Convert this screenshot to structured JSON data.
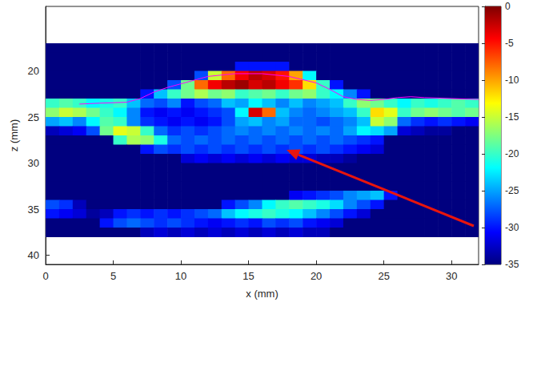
{
  "chart_data": {
    "type": "heatmap",
    "xlabel": "x (mm)",
    "ylabel": "z (mm)",
    "xlim": [
      0,
      32
    ],
    "ylim": [
      13,
      41
    ],
    "xticks": [
      0,
      5,
      10,
      15,
      20,
      25,
      30
    ],
    "yticks": [
      20,
      25,
      30,
      35,
      40
    ],
    "grid": false,
    "cells": {
      "x": [
        0.5,
        1.5,
        2.5,
        3.5,
        4.5,
        5.5,
        6.5,
        7.5,
        8.5,
        9.5,
        10.5,
        11.5,
        12.5,
        13.5,
        14.5,
        15.5,
        16.5,
        17.5,
        18.5,
        19.5,
        20.5,
        21.5,
        22.5,
        23.5,
        24.5,
        25.5,
        26.5,
        27.5,
        28.5,
        29.5,
        30.5,
        31.5
      ],
      "z": [
        17.5,
        18.5,
        19.5,
        20.5,
        21.5,
        22.5,
        23.5,
        24.5,
        25.5,
        26.5,
        27.5,
        28.5,
        29.5,
        30.5,
        31.5,
        32.5,
        33.5,
        34.5,
        35.5,
        36.5,
        37.5
      ],
      "values": [
        [
          -35,
          -35,
          -35,
          -35,
          -35,
          -35,
          -35,
          -35,
          -35,
          -35,
          -35,
          -35,
          -35,
          -35,
          -35,
          -35,
          -35,
          -35,
          -35,
          -35,
          -35,
          -35,
          -35,
          -35,
          -35,
          -35,
          -35,
          -35,
          -35,
          -35,
          -35,
          -35
        ],
        [
          -35,
          -35,
          -35,
          -35,
          -35,
          -35,
          -35,
          -35,
          -35,
          -35,
          -35,
          -35,
          -35,
          -35,
          -35,
          -35,
          -35,
          -35,
          -35,
          -35,
          -35,
          -35,
          -35,
          -35,
          -35,
          -35,
          -35,
          -35,
          -35,
          -35,
          -35,
          -35
        ],
        [
          -35,
          -35,
          -35,
          -35,
          -35,
          -35,
          -35,
          -35,
          -35,
          -35,
          -35,
          -35,
          -35,
          -35,
          -30,
          -30,
          -30,
          -30,
          -35,
          -35,
          -35,
          -35,
          -35,
          -35,
          -35,
          -35,
          -35,
          -35,
          -35,
          -35,
          -35,
          -35
        ],
        [
          -35,
          -35,
          -35,
          -35,
          -35,
          -35,
          -35,
          -35,
          -35,
          -35,
          -35,
          -28,
          -15,
          -8,
          -4,
          -2,
          -3,
          -5,
          -10,
          -22,
          -35,
          -35,
          -35,
          -35,
          -35,
          -35,
          -35,
          -35,
          -35,
          -35,
          -35,
          -35
        ],
        [
          -35,
          -35,
          -35,
          -35,
          -35,
          -35,
          -35,
          -35,
          -35,
          -28,
          -18,
          -8,
          -4,
          -2,
          -1,
          -3,
          -2,
          -4,
          -6,
          -12,
          -20,
          -30,
          -35,
          -35,
          -35,
          -35,
          -35,
          -35,
          -35,
          -35,
          -35,
          -35
        ],
        [
          -35,
          -35,
          -35,
          -35,
          -35,
          -35,
          -35,
          -30,
          -24,
          -20,
          -18,
          -16,
          -18,
          -17,
          -20,
          -19,
          -18,
          -20,
          -18,
          -17,
          -20,
          -22,
          -26,
          -30,
          -35,
          -35,
          -35,
          -35,
          -35,
          -35,
          -35,
          -35
        ],
        [
          -20,
          -19,
          -20,
          -22,
          -21,
          -20,
          -24,
          -27,
          -28,
          -26,
          -30,
          -28,
          -27,
          -24,
          -25,
          -22,
          -24,
          -26,
          -24,
          -26,
          -25,
          -24,
          -20,
          -17,
          -18,
          -20,
          -22,
          -20,
          -21,
          -20,
          -19,
          -20
        ],
        [
          -17,
          -15,
          -16,
          -18,
          -20,
          -22,
          -26,
          -30,
          -31,
          -30,
          -31,
          -30,
          -29,
          -28,
          -22,
          -3,
          -8,
          -24,
          -26,
          -27,
          -26,
          -25,
          -24,
          -20,
          -12,
          -14,
          -20,
          -18,
          -17,
          -18,
          -19,
          -18
        ],
        [
          -25,
          -24,
          -26,
          -22,
          -19,
          -20,
          -26,
          -29,
          -30,
          -31,
          -30,
          -31,
          -30,
          -28,
          -25,
          -24,
          -26,
          -25,
          -27,
          -27,
          -28,
          -27,
          -26,
          -24,
          -15,
          -17,
          -27,
          -29,
          -30,
          -29,
          -30,
          -31
        ],
        [
          -33,
          -32,
          -31,
          -28,
          -18,
          -14,
          -15,
          -20,
          -27,
          -29,
          -28,
          -29,
          -28,
          -27,
          -26,
          -27,
          -26,
          -27,
          -26,
          -27,
          -26,
          -27,
          -25,
          -22,
          -23,
          -25,
          -32,
          -33,
          -34,
          -34,
          -35,
          -35
        ],
        [
          -35,
          -35,
          -35,
          -35,
          -35,
          -20,
          -16,
          -17,
          -21,
          -27,
          -28,
          -27,
          -28,
          -27,
          -28,
          -27,
          -28,
          -27,
          -28,
          -27,
          -28,
          -27,
          -28,
          -29,
          -30,
          -35,
          -35,
          -35,
          -35,
          -35,
          -35,
          -35
        ],
        [
          -35,
          -35,
          -35,
          -35,
          -35,
          -35,
          -35,
          -30,
          -28,
          -29,
          -28,
          -29,
          -28,
          -29,
          -28,
          -29,
          -28,
          -29,
          -28,
          -29,
          -28,
          -29,
          -30,
          -31,
          -32,
          -35,
          -35,
          -35,
          -35,
          -35,
          -35,
          -35
        ],
        [
          -35,
          -35,
          -35,
          -35,
          -35,
          -35,
          -35,
          -35,
          -35,
          -35,
          -32,
          -31,
          -32,
          -31,
          -32,
          -31,
          -32,
          -31,
          -32,
          -32,
          -33,
          -33,
          -34,
          -35,
          -35,
          -35,
          -35,
          -35,
          -35,
          -35,
          -35,
          -35
        ],
        [
          -35,
          -35,
          -35,
          -35,
          -35,
          -35,
          -35,
          -35,
          -35,
          -35,
          -35,
          -35,
          -35,
          -35,
          -35,
          -35,
          -35,
          -35,
          -35,
          -35,
          -35,
          -35,
          -35,
          -35,
          -35,
          -35,
          -35,
          -35,
          -35,
          -35,
          -35,
          -35
        ],
        [
          -35,
          -35,
          -35,
          -35,
          -35,
          -35,
          -35,
          -35,
          -35,
          -35,
          -35,
          -35,
          -35,
          -35,
          -35,
          -35,
          -35,
          -35,
          -35,
          -35,
          -35,
          -35,
          -35,
          -35,
          -35,
          -35,
          -35,
          -35,
          -35,
          -35,
          -35,
          -35
        ],
        [
          -35,
          -35,
          -35,
          -35,
          -35,
          -35,
          -35,
          -35,
          -35,
          -35,
          -35,
          -35,
          -35,
          -35,
          -35,
          -35,
          -35,
          -35,
          -35,
          -35,
          -35,
          -35,
          -35,
          -35,
          -35,
          -35,
          -35,
          -35,
          -35,
          -35,
          -35,
          -35
        ],
        [
          -35,
          -35,
          -35,
          -35,
          -35,
          -35,
          -35,
          -35,
          -35,
          -35,
          -35,
          -35,
          -35,
          -35,
          -35,
          -35,
          -35,
          -35,
          -31,
          -30,
          -29,
          -28,
          -26,
          -25,
          -24,
          -30,
          -35,
          -35,
          -35,
          -35,
          -35,
          -35
        ],
        [
          -28,
          -29,
          -33,
          -35,
          -35,
          -35,
          -35,
          -35,
          -35,
          -35,
          -35,
          -35,
          -35,
          -30,
          -28,
          -26,
          -22,
          -20,
          -19,
          -20,
          -21,
          -23,
          -26,
          -28,
          -30,
          -35,
          -35,
          -35,
          -35,
          -35,
          -35,
          -35
        ],
        [
          -30,
          -31,
          -32,
          -34,
          -33,
          -30,
          -29,
          -30,
          -29,
          -30,
          -29,
          -28,
          -27,
          -24,
          -22,
          -21,
          -20,
          -21,
          -22,
          -24,
          -26,
          -28,
          -30,
          -32,
          -35,
          -35,
          -35,
          -35,
          -35,
          -35,
          -35,
          -35
        ],
        [
          -35,
          -35,
          -35,
          -35,
          -30,
          -28,
          -27,
          -28,
          -29,
          -28,
          -29,
          -30,
          -31,
          -30,
          -29,
          -30,
          -28,
          -29,
          -28,
          -30,
          -31,
          -32,
          -35,
          -35,
          -35,
          -35,
          -35,
          -35,
          -35,
          -35,
          -35,
          -35
        ],
        [
          -35,
          -35,
          -35,
          -35,
          -35,
          -35,
          -35,
          -33,
          -32,
          -33,
          -32,
          -33,
          -32,
          -33,
          -32,
          -33,
          -32,
          -33,
          -32,
          -33,
          -33,
          -35,
          -35,
          -35,
          -35,
          -35,
          -35,
          -35,
          -35,
          -35,
          -35,
          -35
        ]
      ]
    },
    "colorbar": {
      "lim": [
        -35,
        0
      ],
      "ticks": [
        0,
        -5,
        -10,
        -15,
        -20,
        -25,
        -30,
        -35
      ]
    },
    "contour": {
      "color": "#ff00ff",
      "x": [
        2.5,
        4,
        6,
        7,
        8,
        9,
        10,
        12,
        14,
        16,
        18,
        20,
        21,
        22,
        23,
        24,
        25,
        26,
        27,
        28,
        30,
        32
      ],
      "z": [
        23.6,
        23.5,
        23.4,
        23.0,
        22.3,
        21.8,
        21.4,
        20.6,
        20.3,
        20.3,
        20.6,
        21.3,
        22.0,
        22.8,
        23.1,
        23.2,
        23.1,
        22.9,
        22.8,
        22.9,
        23.0,
        23.1
      ]
    }
  }
}
